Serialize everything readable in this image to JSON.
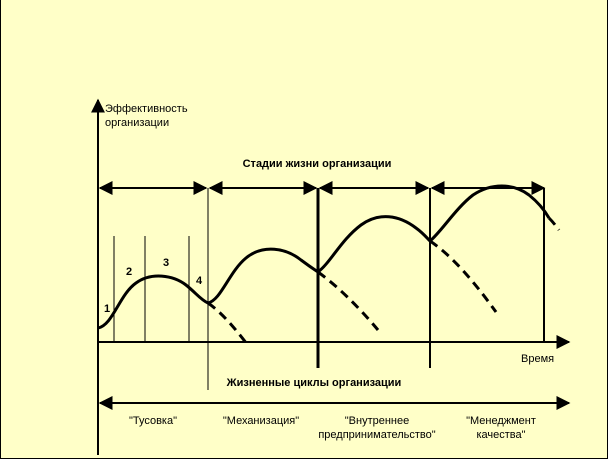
{
  "diagram": {
    "y_axis_label": [
      "Эффективность",
      "организации"
    ],
    "x_axis_label": "Время",
    "stages_title": "Стадии жизни организации",
    "life_cycles_title": "Жизненные циклы организации",
    "cycle_numbers": [
      "1",
      "2",
      "3",
      "4"
    ],
    "stages": [
      {
        "lines": [
          "\"Тусовка\""
        ]
      },
      {
        "lines": [
          "\"Механизация\""
        ]
      },
      {
        "lines": [
          "\"Внутреннее",
          "предпринимательство\""
        ]
      },
      {
        "lines": [
          "\"Менеджмент",
          "качества\""
        ]
      }
    ],
    "colors": {
      "background": "#ffffc8",
      "ink": "#000000"
    }
  }
}
